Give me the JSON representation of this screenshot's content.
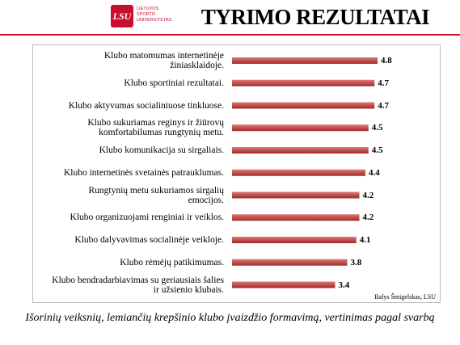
{
  "header": {
    "logo": {
      "mark": "LSU",
      "lines": [
        "LIETUVOS",
        "SPORTO",
        "UNIVERSITETAS"
      ]
    }
  },
  "chart_data": {
    "type": "bar",
    "orientation": "horizontal",
    "title": "TYRIMO REZULTATAI",
    "categories": [
      "Klubo matomumas internetinėje\nžiniasklaidoje.",
      "Klubo sportiniai rezultatai.",
      "Klubo aktyvumas socialiniuose tinkluose.",
      "Klubo sukuriamas reginys ir žiūrovų\nkomfortabilumas rungtynių metu.",
      "Klubo komunikacija su sirgaliais.",
      "Klubo  internetinės svetainės patrauklumas.",
      "Rungtynių metu sukuriamos sirgalių\nemocijos.",
      "Klubo organizuojami renginiai ir veiklos.",
      "Klubo dalyvavimas socialinėje veikloje.",
      "Klubo rėmėjų patikimumas.",
      "Klubo bendradarbiavimas su geriausiais šalies\nir užsienio klubais."
    ],
    "values": [
      4.8,
      4.7,
      4.7,
      4.5,
      4.5,
      4.4,
      4.2,
      4.2,
      4.1,
      3.8,
      3.4
    ],
    "color": "#c0504d",
    "source": "Balys Šmigelskas, LSU",
    "caption": "Išorinių veiksnių, lemiančių krepšinio klubo įvaizdžio formavimą, vertinimas pagal svarbą"
  }
}
